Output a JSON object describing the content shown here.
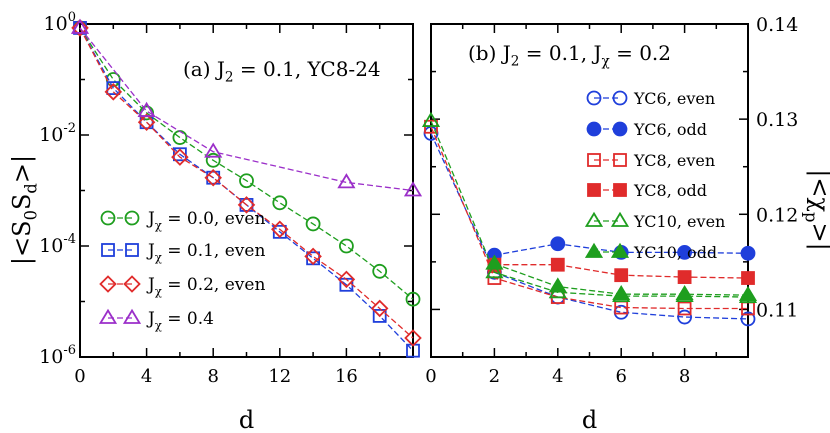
{
  "chart_data": [
    {
      "type": "line",
      "title": "(a) J",
      "title_parts": {
        "sub": "2",
        "rest": " = 0.1, YC8-24"
      },
      "xlabel": "d",
      "ylabel": "|<S",
      "ylabel_parts": {
        "sub1": "0",
        "mid": "S",
        "sub2": "d",
        "end": ">|"
      },
      "xlim": [
        0,
        20
      ],
      "ylim": [
        1e-06,
        1
      ],
      "yscale": "log",
      "xticks": [
        0,
        4,
        8,
        12,
        16
      ],
      "xtick_labels": [
        "0",
        "4",
        "8",
        "12",
        "16"
      ],
      "yticks": [
        1,
        0.01,
        0.0001,
        1e-06
      ],
      "ytick_labels": [
        {
          "base": "10",
          "exp": "0"
        },
        {
          "base": "10",
          "exp": "-2"
        },
        {
          "base": "10",
          "exp": "-4"
        },
        {
          "base": "10",
          "exp": "-6"
        }
      ],
      "legend_position": "lower-left",
      "series": [
        {
          "name": "J",
          "name_sub": "χ",
          "name_rest": " = 0.0, even",
          "color": "#1e9e1e",
          "marker": "circle",
          "x": [
            0,
            2,
            4,
            6,
            8,
            10,
            12,
            14,
            16,
            18,
            20
          ],
          "y": [
            0.85,
            0.1,
            0.025,
            0.009,
            0.0035,
            0.0015,
            0.0006,
            0.00025,
            0.0001,
            3.5e-05,
            1.1e-05
          ]
        },
        {
          "name": "J",
          "name_sub": "χ",
          "name_rest": " = 0.1, even",
          "color": "#1f3fdb",
          "marker": "square",
          "x": [
            0,
            2,
            4,
            6,
            8,
            10,
            12,
            14,
            16,
            18,
            20
          ],
          "y": [
            0.85,
            0.07,
            0.017,
            0.0045,
            0.0017,
            0.00055,
            0.00018,
            6e-05,
            2e-05,
            5.5e-06,
            1.3e-06
          ]
        },
        {
          "name": "J",
          "name_sub": "χ",
          "name_rest": " = 0.2, even",
          "color": "#e02b2b",
          "marker": "diamond",
          "x": [
            0,
            2,
            4,
            6,
            8,
            10,
            12,
            14,
            16,
            18,
            20
          ],
          "y": [
            0.85,
            0.06,
            0.017,
            0.004,
            0.0017,
            0.00055,
            0.0002,
            6.5e-05,
            2.5e-05,
            7.5e-06,
            2.2e-06
          ]
        },
        {
          "name": "J",
          "name_sub": "χ",
          "name_rest": " = 0.4",
          "color": "#9b2fc9",
          "marker": "triangle",
          "x": [
            0,
            4,
            8,
            16,
            20
          ],
          "y": [
            0.85,
            0.027,
            0.005,
            0.0014,
            0.001
          ]
        }
      ]
    },
    {
      "type": "line",
      "title": "(b) J",
      "title_parts": {
        "sub1": "2",
        "mid": " = 0.1, J",
        "sub2": "χ",
        "rest": " = 0.2"
      },
      "xlabel": "d",
      "ylabel": "|<χ",
      "ylabel_parts": {
        "sub": "p",
        "end": ">|"
      },
      "xlim": [
        0,
        10
      ],
      "ylim": [
        0.105,
        0.14
      ],
      "xticks": [
        0,
        2,
        4,
        6,
        8
      ],
      "xtick_labels": [
        "0",
        "2",
        "4",
        "6",
        "8"
      ],
      "yticks": [
        0.11,
        0.12,
        0.13,
        0.14
      ],
      "ytick_labels": [
        "0.11",
        "0.12",
        "0.13",
        "0.14"
      ],
      "legend_position": "right",
      "series": [
        {
          "name": "YC6, even",
          "color": "#1f3fdb",
          "marker": "circle",
          "filled": false,
          "x": [
            0,
            2,
            4,
            6,
            8,
            10
          ],
          "y": [
            0.1285,
            0.1139,
            0.1113,
            0.1097,
            0.1092,
            0.109
          ]
        },
        {
          "name": "YC6, odd",
          "color": "#1f3fdb",
          "marker": "circle",
          "filled": true,
          "x": [
            2,
            4,
            6,
            8,
            10
          ],
          "y": [
            0.1157,
            0.1169,
            0.116,
            0.116,
            0.1159
          ]
        },
        {
          "name": "YC8, even",
          "color": "#e02b2b",
          "marker": "square",
          "filled": false,
          "x": [
            0,
            2,
            4,
            6,
            8,
            10
          ],
          "y": [
            0.1292,
            0.1133,
            0.1113,
            0.1102,
            0.1101,
            0.1101
          ]
        },
        {
          "name": "YC8, odd",
          "color": "#e02b2b",
          "marker": "square",
          "filled": true,
          "x": [
            2,
            4,
            6,
            8,
            10
          ],
          "y": [
            0.1147,
            0.1147,
            0.1136,
            0.1134,
            0.1133
          ]
        },
        {
          "name": "YC10, even",
          "color": "#1e9e1e",
          "marker": "triangle",
          "filled": false,
          "x": [
            0,
            2,
            4,
            6,
            8,
            10
          ],
          "y": [
            0.1298,
            0.1139,
            0.1118,
            0.1114,
            0.1114,
            0.1113
          ]
        },
        {
          "name": "YC10, odd",
          "color": "#1e9e1e",
          "marker": "triangle",
          "filled": true,
          "x": [
            2,
            4,
            6,
            8,
            10
          ],
          "y": [
            0.1148,
            0.1124,
            0.1116,
            0.1116,
            0.1115
          ]
        }
      ]
    }
  ]
}
